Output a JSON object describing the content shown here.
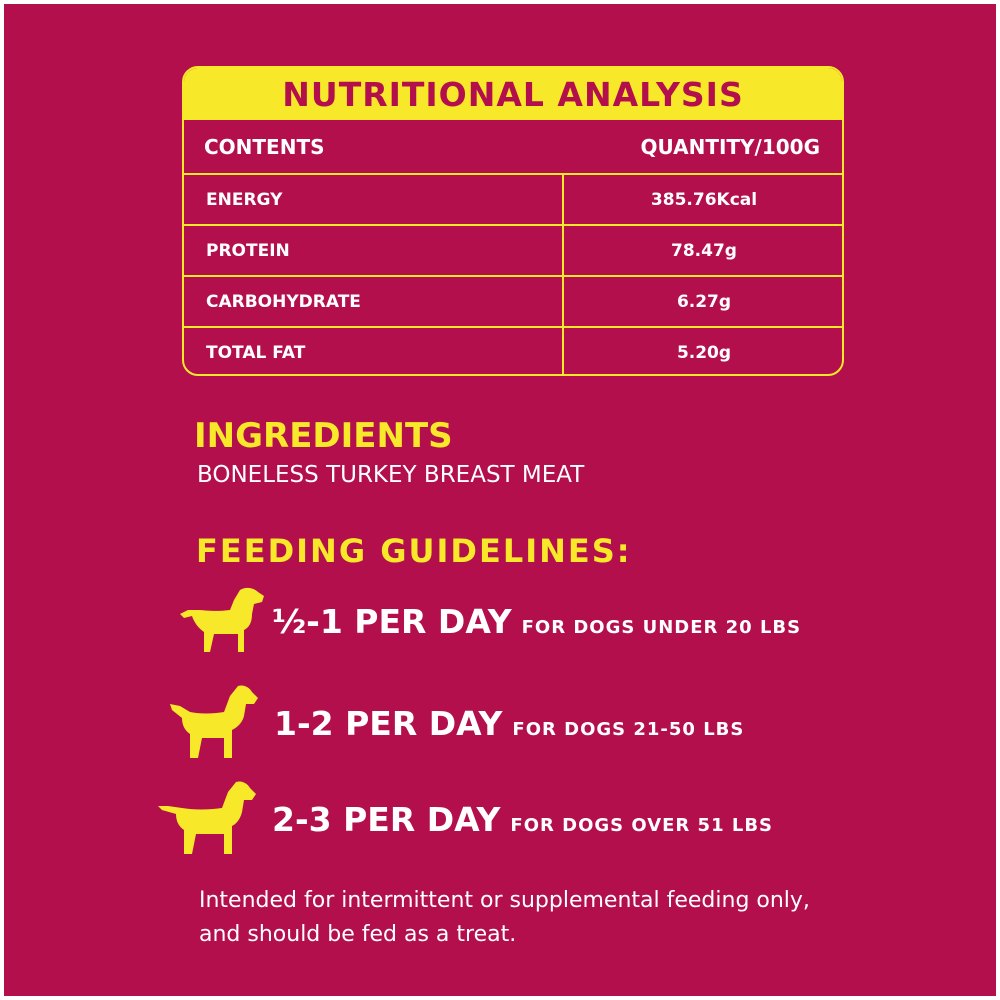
{
  "colors": {
    "background": "#b30f4d",
    "accent": "#f8e82a",
    "text": "#ffffff"
  },
  "nutrition": {
    "title": "NUTRITIONAL ANALYSIS",
    "col_contents": "CONTENTS",
    "col_quantity": "QUANTITY/100G",
    "rows": [
      {
        "label": "ENERGY",
        "value": "385.76Kcal"
      },
      {
        "label": "PROTEIN",
        "value": "78.47g"
      },
      {
        "label": "CARBOHYDRATE",
        "value": "6.27g"
      },
      {
        "label": "TOTAL FAT",
        "value": "5.20g"
      }
    ]
  },
  "ingredients": {
    "title": "INGREDIENTS",
    "text": "BONELESS TURKEY BREAST MEAT"
  },
  "feeding": {
    "title": "FEEDING GUIDELINES:",
    "items": [
      {
        "icon": "dog-icon",
        "amount": "½-1 PER DAY",
        "target": "FOR DOGS UNDER 20 LBS"
      },
      {
        "icon": "dog-icon",
        "amount": "1-2 PER DAY",
        "target": "FOR DOGS 21-50 LBS"
      },
      {
        "icon": "dog-icon",
        "amount": "2-3 PER DAY",
        "target": "FOR DOGS OVER 51 LBS"
      }
    ]
  },
  "note": "Intended for intermittent or supplemental feeding only, and should be fed as a treat."
}
